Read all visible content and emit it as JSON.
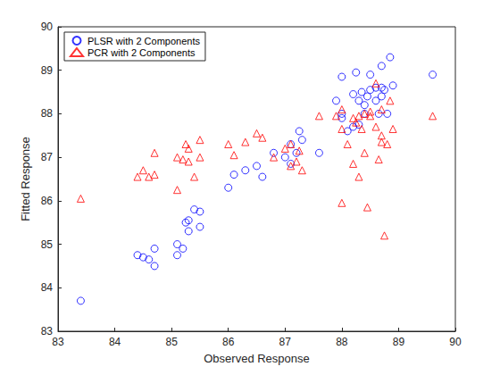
{
  "chart_data": {
    "type": "scatter",
    "x_label": "Observed Response",
    "y_label": "Fitted Response",
    "x": [
      83.4,
      84.4,
      84.5,
      84.6,
      84.7,
      84.7,
      85.1,
      85.1,
      85.2,
      85.25,
      85.3,
      85.3,
      85.4,
      85.5,
      85.5,
      86.0,
      86.1,
      86.3,
      86.5,
      86.6,
      86.8,
      87.0,
      87.1,
      87.1,
      87.2,
      87.3,
      87.25,
      87.6,
      87.9,
      88.0,
      88.0,
      88.0,
      88.1,
      88.2,
      88.25,
      88.3,
      88.3,
      88.35,
      88.4,
      88.45,
      88.5,
      88.5,
      88.6,
      88.6,
      88.65,
      88.7,
      88.7,
      88.75,
      88.7,
      88.8,
      88.85,
      88.9,
      89.6,
      88.2,
      88.4
    ],
    "series": [
      {
        "name": "PLSR with 2 Components",
        "color": "#0000ff",
        "marker": "circle",
        "values": [
          83.7,
          84.75,
          84.7,
          84.65,
          84.9,
          84.5,
          84.75,
          85.0,
          84.9,
          85.5,
          85.3,
          85.55,
          85.8,
          85.75,
          85.4,
          86.3,
          86.6,
          86.7,
          86.8,
          86.55,
          87.1,
          87.0,
          86.85,
          87.3,
          87.1,
          87.4,
          87.6,
          87.1,
          88.3,
          88.85,
          88.0,
          87.9,
          87.6,
          88.45,
          88.95,
          88.3,
          87.75,
          88.5,
          88.0,
          88.4,
          88.9,
          88.55,
          88.6,
          88.3,
          88.0,
          88.6,
          89.1,
          88.55,
          88.4,
          88.0,
          89.3,
          88.65,
          88.9,
          87.7,
          88.2
        ]
      },
      {
        "name": "PCR with 2 Components",
        "color": "#ff0000",
        "marker": "triangle",
        "values": [
          86.05,
          86.55,
          86.7,
          86.55,
          87.1,
          86.6,
          87.0,
          86.25,
          86.95,
          87.3,
          87.2,
          86.9,
          86.55,
          87.4,
          87.0,
          87.3,
          87.05,
          87.35,
          87.55,
          87.45,
          87.0,
          87.2,
          86.8,
          87.3,
          86.9,
          86.7,
          87.15,
          87.95,
          87.95,
          85.95,
          87.65,
          88.1,
          87.3,
          86.85,
          87.8,
          86.55,
          87.95,
          87.65,
          87.1,
          85.85,
          88.05,
          87.95,
          87.7,
          88.7,
          86.95,
          87.5,
          88.1,
          85.2,
          87.35,
          87.3,
          88.3,
          87.65,
          87.95,
          87.9,
          88.0
        ]
      }
    ],
    "xlim": [
      83,
      90
    ],
    "xticks": [
      83,
      84,
      85,
      86,
      87,
      88,
      89,
      90
    ],
    "ylim": [
      83,
      90
    ],
    "yticks": [
      83,
      84,
      85,
      86,
      87,
      88,
      89,
      90
    ],
    "grid": false,
    "legend": "top-left"
  }
}
